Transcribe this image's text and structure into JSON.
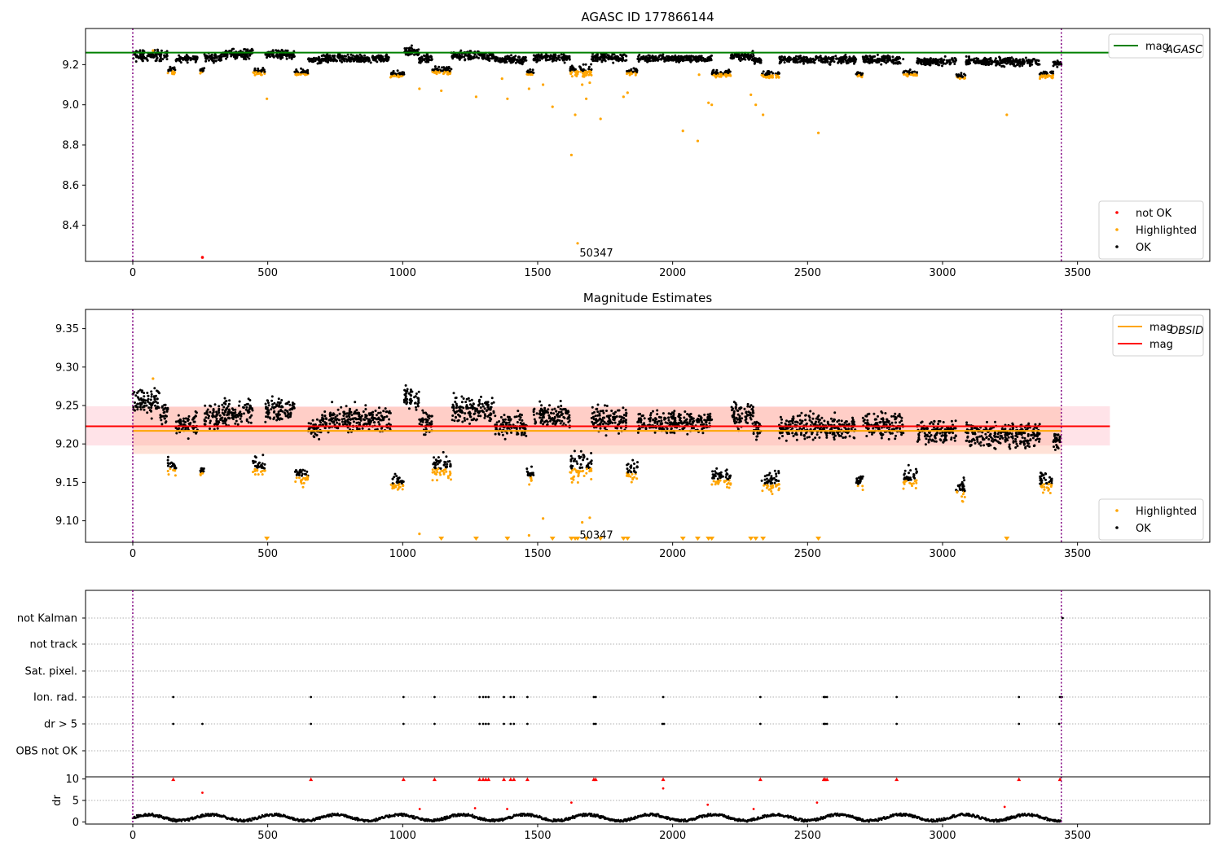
{
  "chart_data": [
    {
      "id": "top",
      "type": "scatter",
      "title": "AGASC ID 177866144",
      "xlim": [
        -175,
        3990
      ],
      "ylim": [
        8.22,
        9.38
      ],
      "xticks": [
        0,
        500,
        1000,
        1500,
        2000,
        2500,
        3000,
        3500
      ],
      "yticks": [
        8.4,
        8.6,
        8.8,
        9.0,
        9.2
      ],
      "ytick_labels": [
        "8.4",
        "8.6",
        "8.8",
        "9.0",
        "9.2"
      ],
      "vlines": [
        0,
        3440
      ],
      "hline": {
        "label": "mag",
        "sub": "AGASC",
        "value": 9.26,
        "x": [
          -175,
          3620
        ],
        "color": "#008000"
      },
      "annotation": {
        "text": "50347",
        "x": 1655,
        "y": 8.265
      },
      "legend_top": [
        {
          "label": "mag",
          "sub": "AGASC",
          "color": "#008000"
        }
      ],
      "legend_bottom": [
        {
          "label": "not OK",
          "color": "#ff0000"
        },
        {
          "label": "Highlighted",
          "color": "#ffa500"
        },
        {
          "label": "OK",
          "color": "#000000"
        }
      ],
      "not_ok_points": [
        [
          258,
          8.24
        ]
      ],
      "highlighted_points": [
        [
          75,
          9.27
        ],
        [
          497,
          9.03
        ],
        [
          1062,
          9.08
        ],
        [
          1143,
          9.07
        ],
        [
          1272,
          9.04
        ],
        [
          1368,
          9.13
        ],
        [
          1388,
          9.03
        ],
        [
          1468,
          9.08
        ],
        [
          1520,
          9.1
        ],
        [
          1555,
          8.99
        ],
        [
          1625,
          8.75
        ],
        [
          1639,
          8.95
        ],
        [
          1648,
          8.31
        ],
        [
          1665,
          9.1
        ],
        [
          1672,
          9.14
        ],
        [
          1680,
          9.03
        ],
        [
          1693,
          9.11
        ],
        [
          1733,
          8.93
        ],
        [
          1818,
          9.04
        ],
        [
          1833,
          9.06
        ],
        [
          2038,
          8.87
        ],
        [
          2093,
          8.82
        ],
        [
          2098,
          9.15
        ],
        [
          2133,
          9.01
        ],
        [
          2145,
          9.0
        ],
        [
          2290,
          9.05
        ],
        [
          2308,
          9.0
        ],
        [
          2335,
          8.95
        ],
        [
          2540,
          8.86
        ],
        [
          3238,
          8.95
        ]
      ],
      "ok_segments": [
        [
          0,
          130,
          9.245,
          0.02
        ],
        [
          130,
          160,
          9.17,
          0.015
        ],
        [
          160,
          240,
          9.23,
          0.012
        ],
        [
          250,
          265,
          9.17,
          0.01
        ],
        [
          265,
          330,
          9.235,
          0.015
        ],
        [
          330,
          445,
          9.255,
          0.018
        ],
        [
          445,
          490,
          9.165,
          0.012
        ],
        [
          490,
          600,
          9.25,
          0.015
        ],
        [
          600,
          650,
          9.16,
          0.012
        ],
        [
          650,
          700,
          9.22,
          0.012
        ],
        [
          700,
          955,
          9.23,
          0.015
        ],
        [
          955,
          1005,
          9.15,
          0.012
        ],
        [
          1005,
          1060,
          9.265,
          0.018
        ],
        [
          1060,
          1110,
          9.23,
          0.015
        ],
        [
          1110,
          1180,
          9.17,
          0.015
        ],
        [
          1180,
          1340,
          9.245,
          0.018
        ],
        [
          1340,
          1460,
          9.225,
          0.015
        ],
        [
          1460,
          1485,
          9.16,
          0.01
        ],
        [
          1485,
          1620,
          9.235,
          0.015
        ],
        [
          1620,
          1700,
          9.17,
          0.02
        ],
        [
          1700,
          1830,
          9.235,
          0.015
        ],
        [
          1830,
          1870,
          9.165,
          0.012
        ],
        [
          1870,
          2145,
          9.23,
          0.012
        ],
        [
          2145,
          2215,
          9.155,
          0.012
        ],
        [
          2215,
          2300,
          9.24,
          0.018
        ],
        [
          2300,
          2330,
          9.22,
          0.01
        ],
        [
          2330,
          2395,
          9.15,
          0.012
        ],
        [
          2395,
          2680,
          9.225,
          0.015
        ],
        [
          2680,
          2705,
          9.15,
          0.01
        ],
        [
          2705,
          2855,
          9.225,
          0.015
        ],
        [
          2855,
          2905,
          9.155,
          0.012
        ],
        [
          2905,
          3050,
          9.215,
          0.015
        ],
        [
          3050,
          3085,
          9.14,
          0.012
        ],
        [
          3085,
          3360,
          9.215,
          0.015
        ],
        [
          3360,
          3410,
          9.15,
          0.012
        ],
        [
          3410,
          3440,
          9.205,
          0.01
        ]
      ]
    },
    {
      "id": "middle",
      "type": "scatter",
      "title": "Magnitude Estimates",
      "xlim": [
        -175,
        3990
      ],
      "ylim": [
        9.072,
        9.375
      ],
      "xticks": [
        0,
        500,
        1000,
        1500,
        2000,
        2500,
        3000,
        3500
      ],
      "yticks": [
        9.1,
        9.15,
        9.2,
        9.25,
        9.3,
        9.35
      ],
      "ytick_labels": [
        "9.10",
        "9.15",
        "9.20",
        "9.25",
        "9.30",
        "9.35"
      ],
      "vlines": [
        0,
        3440
      ],
      "band_mag": {
        "low": 9.198,
        "high": 9.249,
        "x": [
          -175,
          3620
        ],
        "color": "#ffc0cb"
      },
      "band_obsid": {
        "low": 9.187,
        "high": 9.248,
        "x": [
          0,
          3440
        ],
        "color": "#ffa07a"
      },
      "mag_line": {
        "label": "mag",
        "value": 9.223,
        "color": "#ff0000"
      },
      "mag_obsid_line": {
        "label": "mag",
        "sub": "OBSID",
        "value": 9.217,
        "color": "#ffa500"
      },
      "annotation": {
        "text": "50347",
        "x": 1655,
        "y": 9.082
      },
      "legend_top": [
        {
          "label": "mag",
          "sub": "OBSID",
          "color": "#ffa500"
        },
        {
          "label": "mag",
          "sub": "",
          "color": "#ff0000"
        }
      ],
      "legend_bottom": [
        {
          "label": "Highlighted",
          "color": "#ffa500"
        },
        {
          "label": "OK",
          "color": "#000000"
        }
      ],
      "highlighted_points": [
        [
          75,
          9.285
        ],
        [
          1062,
          9.083
        ],
        [
          1468,
          9.081
        ],
        [
          1520,
          9.103
        ],
        [
          1665,
          9.098
        ],
        [
          1693,
          9.104
        ]
      ],
      "clipped_markers_x": [
        497,
        1143,
        1272,
        1388,
        1555,
        1625,
        1639,
        1648,
        1680,
        1733,
        1818,
        1833,
        2038,
        2093,
        2133,
        2145,
        2290,
        2308,
        2335,
        2540,
        3238
      ],
      "ok_segments": [
        [
          0,
          100,
          9.255,
          0.012
        ],
        [
          100,
          130,
          9.24,
          0.01
        ],
        [
          130,
          160,
          9.17,
          0.01
        ],
        [
          160,
          240,
          9.225,
          0.01
        ],
        [
          250,
          265,
          9.165,
          0.005
        ],
        [
          265,
          330,
          9.235,
          0.012
        ],
        [
          330,
          445,
          9.24,
          0.012
        ],
        [
          445,
          490,
          9.17,
          0.01
        ],
        [
          490,
          600,
          9.245,
          0.012
        ],
        [
          600,
          650,
          9.16,
          0.01
        ],
        [
          650,
          700,
          9.22,
          0.01
        ],
        [
          700,
          955,
          9.232,
          0.012
        ],
        [
          955,
          1005,
          9.15,
          0.008
        ],
        [
          1005,
          1060,
          9.26,
          0.012
        ],
        [
          1060,
          1110,
          9.23,
          0.012
        ],
        [
          1110,
          1180,
          9.17,
          0.012
        ],
        [
          1180,
          1340,
          9.245,
          0.012
        ],
        [
          1340,
          1460,
          9.225,
          0.012
        ],
        [
          1460,
          1485,
          9.16,
          0.008
        ],
        [
          1485,
          1620,
          9.235,
          0.012
        ],
        [
          1620,
          1700,
          9.17,
          0.014
        ],
        [
          1700,
          1830,
          9.232,
          0.012
        ],
        [
          1830,
          1870,
          9.165,
          0.01
        ],
        [
          1870,
          2145,
          9.228,
          0.01
        ],
        [
          2145,
          2215,
          9.155,
          0.01
        ],
        [
          2215,
          2300,
          9.24,
          0.014
        ],
        [
          2300,
          2330,
          9.22,
          0.008
        ],
        [
          2330,
          2395,
          9.15,
          0.01
        ],
        [
          2395,
          2680,
          9.222,
          0.012
        ],
        [
          2680,
          2705,
          9.15,
          0.008
        ],
        [
          2705,
          2855,
          9.225,
          0.012
        ],
        [
          2855,
          2905,
          9.155,
          0.01
        ],
        [
          2905,
          3050,
          9.215,
          0.012
        ],
        [
          3050,
          3085,
          9.14,
          0.01
        ],
        [
          3085,
          3360,
          9.212,
          0.012
        ],
        [
          3360,
          3410,
          9.15,
          0.01
        ],
        [
          3410,
          3440,
          9.205,
          0.008
        ]
      ]
    },
    {
      "id": "flags",
      "type": "scatter",
      "xlim": [
        -175,
        3990
      ],
      "vlines": [
        0,
        3440
      ],
      "row_labels": [
        "not Kalman",
        "not track",
        "Sat. pixel.",
        "Ion. rad.",
        "dr > 5",
        "OBS not OK"
      ],
      "rows": {
        "Ion. rad.": [
          150,
          660,
          1003,
          1118,
          1285,
          1298,
          1308,
          1318,
          1375,
          1400,
          1412,
          1462,
          1708,
          1715,
          1965,
          2325,
          2560,
          2565,
          2572,
          2830,
          3283,
          3435,
          3442
        ],
        "dr > 5": [
          150,
          258,
          660,
          1003,
          1118,
          1285,
          1298,
          1308,
          1318,
          1375,
          1400,
          1412,
          1462,
          1708,
          1715,
          1962,
          1968,
          2325,
          2560,
          2565,
          2572,
          2830,
          3283,
          3432
        ],
        "not Kalman": [
          3445
        ]
      }
    },
    {
      "id": "dr",
      "type": "scatter",
      "ylabel": "dr",
      "xlim": [
        -175,
        3990
      ],
      "ylim": [
        -0.5,
        10.5
      ],
      "yticks": [
        0,
        5,
        10
      ],
      "ytick_labels": [
        "0",
        "5",
        "10"
      ],
      "xticks": [
        0,
        500,
        1000,
        1500,
        2000,
        2500,
        3000,
        3500
      ],
      "vlines": [
        0,
        3440
      ],
      "red_outliers": [
        [
          258,
          6.8
        ],
        [
          1063,
          3.0
        ],
        [
          1268,
          3.2
        ],
        [
          1387,
          3.0
        ],
        [
          1625,
          4.5
        ],
        [
          1965,
          7.8
        ],
        [
          2130,
          4.0
        ],
        [
          2300,
          3.0
        ],
        [
          2535,
          4.5
        ],
        [
          3230,
          3.5
        ]
      ],
      "red_top_x": [
        150,
        660,
        1003,
        1118,
        1285,
        1298,
        1308,
        1318,
        1375,
        1400,
        1412,
        1462,
        1708,
        1715,
        1965,
        2325,
        2560,
        2565,
        2572,
        2830,
        3283,
        3435
      ]
    }
  ]
}
